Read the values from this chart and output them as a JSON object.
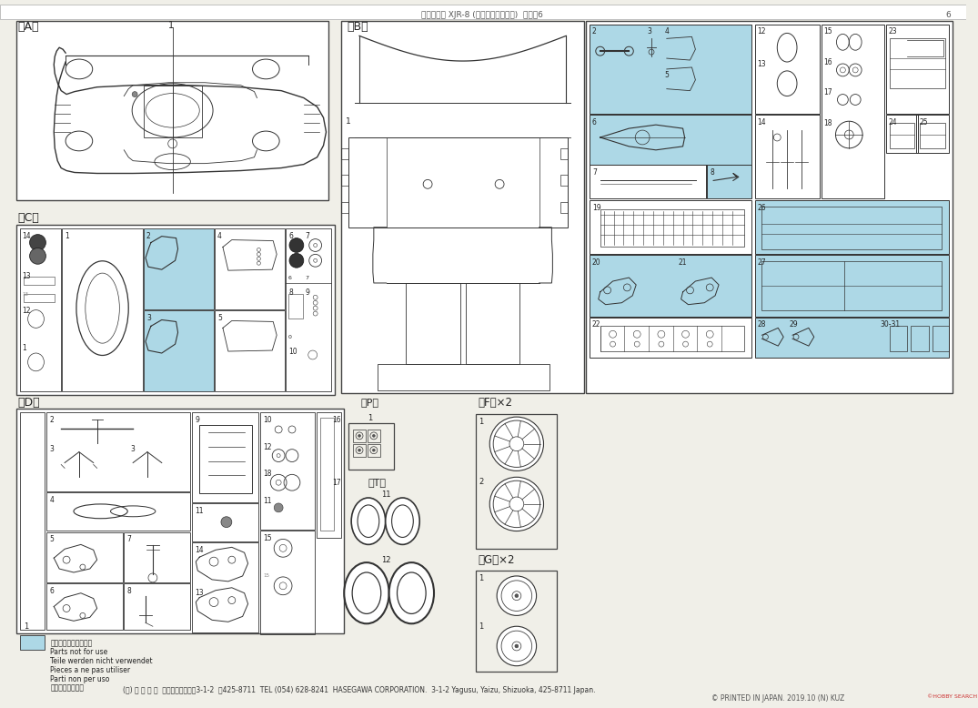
{
  "bg_color": "#f0efe8",
  "white": "#ffffff",
  "border_color": "#444444",
  "blue_fill": "#add8e6",
  "line_color": "#333333",
  "dark": "#222222",
  "footer_jp": "(株) ハ セ ガ ワ  静岡県焼津市八楠3-1-2  〒425-8711  TEL (054) 628-8241  HASEGAWA CORPORATION.  3-1-2 Yagusu, Yaizu, Shizuoka, 425-8711 Japan.",
  "footer_en": "© PRINTED IN JAPAN. 2019.10 (N) KUZ",
  "legend_text": [
    "の部品は使用しません",
    "Parts not for use",
    "Teile werden nicht verwendet",
    "Pieces a ne pas utiliser",
    "Parti non per uso",
    "不需要使用的部件"
  ],
  "lA": "《A》",
  "lB": "《B》",
  "lC": "《C》",
  "lD": "《D》",
  "lP": "《P》",
  "lT": "《T》",
  "lF": "《F》×2",
  "lG": "《G》×2"
}
